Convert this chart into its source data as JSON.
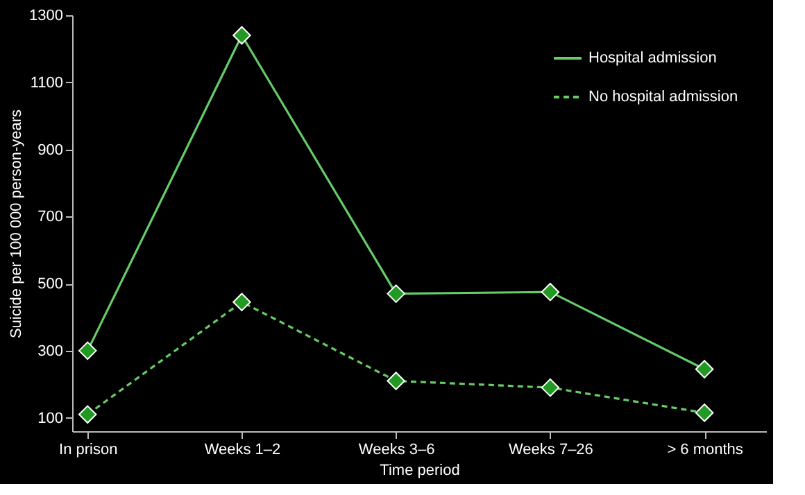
{
  "chart_data": {
    "type": "line",
    "xlabel": "Time period",
    "ylabel": "Suicide per 100 000 person-years",
    "categories": [
      "In prison",
      "Weeks 1–2",
      "Weeks 3–6",
      "Weeks 7–26",
      "> 6 months"
    ],
    "series": [
      {
        "name": "Hospital admission",
        "color": "#66cc66",
        "line_style": "solid",
        "values": [
          300,
          1240,
          470,
          475,
          245
        ]
      },
      {
        "name": "No hospital admission",
        "color": "#66cc66",
        "line_style": "dashed",
        "values": [
          110,
          445,
          210,
          190,
          115
        ]
      }
    ],
    "ylim": [
      60,
      1300
    ],
    "yticks": [
      100,
      300,
      500,
      700,
      900,
      1100,
      1300
    ],
    "grid": false,
    "legend": "top right",
    "marker": "diamond"
  }
}
